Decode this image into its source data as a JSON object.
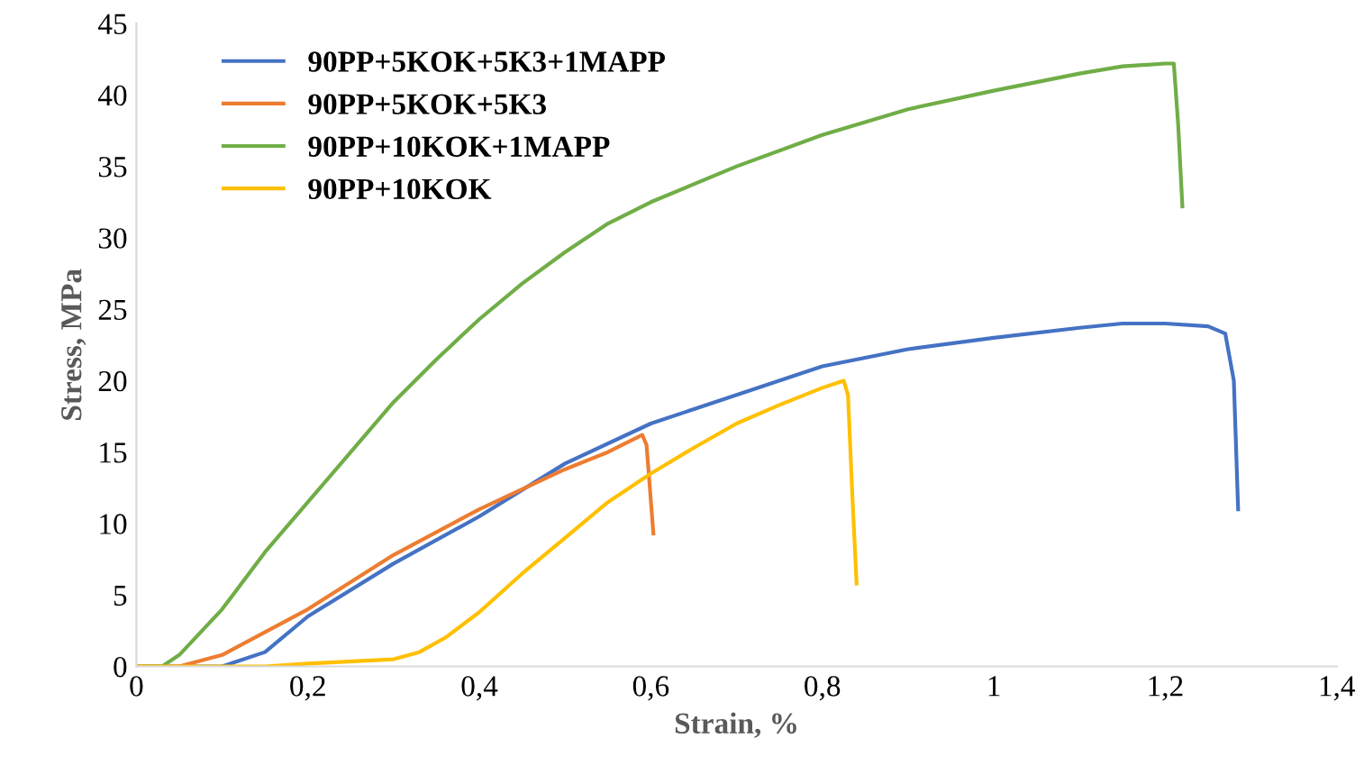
{
  "chart_data": {
    "type": "line",
    "xlabel": "Strain, %",
    "ylabel": "Stress, MPa",
    "xlim": [
      0,
      1.4
    ],
    "ylim": [
      0,
      45
    ],
    "xticks": [
      0,
      {
        "value": 0.2,
        "label": "0,2"
      },
      {
        "value": 0.4,
        "label": "0,4"
      },
      {
        "value": 0.6,
        "label": "0,6"
      },
      {
        "value": 0.8,
        "label": "0,8"
      },
      1,
      {
        "value": 1.2,
        "label": "1,2"
      },
      {
        "value": 1.4,
        "label": "1,4"
      }
    ],
    "yticks": [
      0,
      5,
      10,
      15,
      20,
      25,
      30,
      35,
      40,
      45
    ],
    "grid": false,
    "legend": "top left",
    "marker": "none",
    "line_style": "solid",
    "series": [
      {
        "name": "90PP+5KOK+5K3+1MAPP",
        "color": "#4472c4",
        "x": [
          0,
          0.1,
          0.15,
          0.2,
          0.3,
          0.4,
          0.5,
          0.6,
          0.7,
          0.8,
          0.9,
          1.0,
          1.1,
          1.15,
          1.2,
          1.25,
          1.27,
          1.28,
          1.285
        ],
        "values": [
          0,
          0,
          1,
          3.5,
          7.2,
          10.5,
          14.2,
          17,
          19,
          21,
          22.2,
          23,
          23.7,
          24,
          24,
          23.8,
          23.3,
          20,
          11
        ]
      },
      {
        "name": "90PP+5KOK+5K3",
        "color": "#ed7d31",
        "x": [
          0,
          0.05,
          0.1,
          0.2,
          0.3,
          0.4,
          0.5,
          0.55,
          0.59,
          0.595,
          0.603
        ],
        "values": [
          0,
          0,
          0.8,
          4,
          7.8,
          11,
          13.8,
          15,
          16.2,
          15.5,
          9.3
        ]
      },
      {
        "name": "90PP+10KOK+1MAPP",
        "color": "#70ad47",
        "x": [
          0,
          0.03,
          0.05,
          0.1,
          0.15,
          0.2,
          0.25,
          0.3,
          0.35,
          0.4,
          0.45,
          0.5,
          0.55,
          0.6,
          0.7,
          0.8,
          0.9,
          1.0,
          1.1,
          1.15,
          1.2,
          1.21,
          1.215,
          1.22
        ],
        "values": [
          0,
          0,
          0.8,
          4,
          8,
          11.5,
          15,
          18.5,
          21.5,
          24.3,
          26.8,
          29,
          31,
          32.5,
          35,
          37.2,
          39,
          40.3,
          41.5,
          42,
          42.2,
          42.2,
          38,
          32.2
        ]
      },
      {
        "name": "90PP+10KOK",
        "color": "#ffc000",
        "x": [
          0,
          0.15,
          0.2,
          0.3,
          0.33,
          0.36,
          0.4,
          0.45,
          0.5,
          0.55,
          0.6,
          0.65,
          0.7,
          0.75,
          0.8,
          0.825,
          0.83,
          0.835,
          0.84
        ],
        "values": [
          0,
          0,
          0.2,
          0.5,
          1,
          2,
          3.8,
          6.5,
          9,
          11.5,
          13.5,
          15.3,
          17,
          18.3,
          19.5,
          20,
          19,
          12,
          5.8
        ]
      }
    ]
  }
}
